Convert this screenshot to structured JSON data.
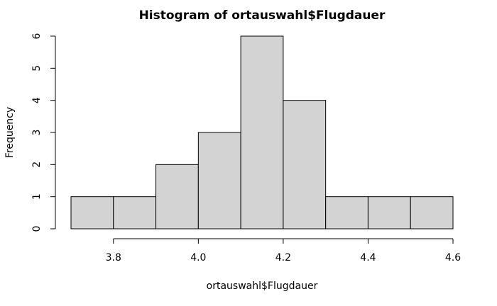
{
  "chart_data": {
    "type": "bar",
    "title": "Histogram of ortauswahl$Flugdauer",
    "xlabel": "ortauswahl$Flugdauer",
    "ylabel": "Frequency",
    "bins": [
      {
        "from": 3.7,
        "to": 3.8,
        "count": 1
      },
      {
        "from": 3.8,
        "to": 3.9,
        "count": 1
      },
      {
        "from": 3.9,
        "to": 4.0,
        "count": 2
      },
      {
        "from": 4.0,
        "to": 4.1,
        "count": 3
      },
      {
        "from": 4.1,
        "to": 4.2,
        "count": 6
      },
      {
        "from": 4.2,
        "to": 4.3,
        "count": 4
      },
      {
        "from": 4.3,
        "to": 4.4,
        "count": 1
      },
      {
        "from": 4.4,
        "to": 4.5,
        "count": 1
      },
      {
        "from": 4.5,
        "to": 4.6,
        "count": 1
      }
    ],
    "xlim": [
      3.7,
      4.6
    ],
    "ylim": [
      0,
      6
    ],
    "x_ticks": [
      "3.8",
      "4.0",
      "4.2",
      "4.4",
      "4.6"
    ],
    "y_ticks": [
      "0",
      "1",
      "2",
      "3",
      "4",
      "5",
      "6"
    ],
    "grid": false,
    "bar_fill": "#d3d3d3",
    "bar_stroke": "#000000"
  }
}
